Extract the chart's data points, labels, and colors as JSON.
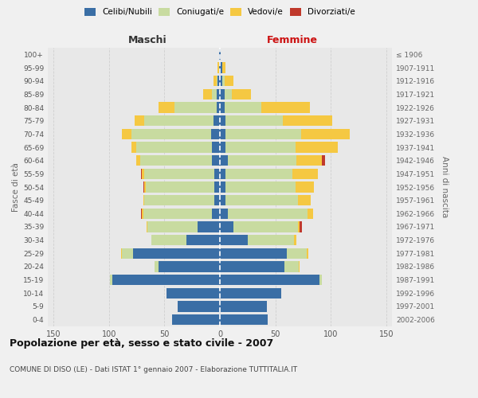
{
  "age_groups": [
    "0-4",
    "5-9",
    "10-14",
    "15-19",
    "20-24",
    "25-29",
    "30-34",
    "35-39",
    "40-44",
    "45-49",
    "50-54",
    "55-59",
    "60-64",
    "65-69",
    "70-74",
    "75-79",
    "80-84",
    "85-89",
    "90-94",
    "95-99",
    "100+"
  ],
  "birth_years": [
    "2002-2006",
    "1997-2001",
    "1992-1996",
    "1987-1991",
    "1982-1986",
    "1977-1981",
    "1972-1976",
    "1967-1971",
    "1962-1966",
    "1957-1961",
    "1952-1956",
    "1947-1951",
    "1942-1946",
    "1937-1941",
    "1932-1936",
    "1927-1931",
    "1922-1926",
    "1917-1921",
    "1912-1916",
    "1907-1911",
    "≤ 1906"
  ],
  "maschi_celibe": [
    43,
    38,
    48,
    97,
    55,
    78,
    30,
    20,
    7,
    5,
    5,
    5,
    7,
    7,
    8,
    6,
    3,
    3,
    2,
    1,
    1
  ],
  "maschi_coniugati": [
    0,
    0,
    0,
    2,
    4,
    10,
    32,
    45,
    62,
    63,
    62,
    63,
    65,
    68,
    72,
    62,
    38,
    4,
    1,
    0,
    0
  ],
  "maschi_vedovi": [
    0,
    0,
    0,
    0,
    0,
    1,
    0,
    1,
    1,
    1,
    1,
    2,
    3,
    5,
    8,
    9,
    14,
    8,
    3,
    1,
    0
  ],
  "maschi_divorziati": [
    0,
    0,
    0,
    0,
    0,
    0,
    0,
    0,
    1,
    0,
    1,
    1,
    0,
    0,
    0,
    0,
    0,
    0,
    0,
    0,
    0
  ],
  "femmine_celibe": [
    43,
    42,
    55,
    90,
    58,
    60,
    25,
    12,
    7,
    5,
    5,
    5,
    7,
    5,
    5,
    5,
    4,
    4,
    2,
    2,
    1
  ],
  "femmine_coniugati": [
    0,
    0,
    0,
    2,
    13,
    18,
    42,
    58,
    72,
    65,
    63,
    60,
    62,
    63,
    68,
    52,
    33,
    7,
    2,
    0,
    0
  ],
  "femmine_vedovi": [
    0,
    0,
    0,
    0,
    1,
    2,
    2,
    2,
    5,
    12,
    17,
    23,
    23,
    38,
    44,
    44,
    44,
    17,
    8,
    3,
    0
  ],
  "femmine_divorziati": [
    0,
    0,
    0,
    0,
    0,
    0,
    0,
    2,
    0,
    0,
    0,
    0,
    3,
    0,
    0,
    0,
    0,
    0,
    0,
    0,
    0
  ],
  "color_celibe": "#3a6ea5",
  "color_coniugati": "#c8dba0",
  "color_vedovi": "#f5c842",
  "color_divorziati": "#c0392b",
  "title": "Popolazione per età, sesso e stato civile - 2007",
  "subtitle": "COMUNE DI DISO (LE) - Dati ISTAT 1° gennaio 2007 - Elaborazione TUTTITALIA.IT",
  "label_maschi": "Maschi",
  "label_femmine": "Femmine",
  "ylabel_left": "Fasce di età",
  "ylabel_right": "Anni di nascita",
  "xlim": 155,
  "bg_color": "#f0f0f0",
  "plot_bg_color": "#e8e8e8",
  "grid_color": "#d0d0d0",
  "legend_labels": [
    "Celibi/Nubili",
    "Coniugati/e",
    "Vedovi/e",
    "Divorziati/e"
  ]
}
